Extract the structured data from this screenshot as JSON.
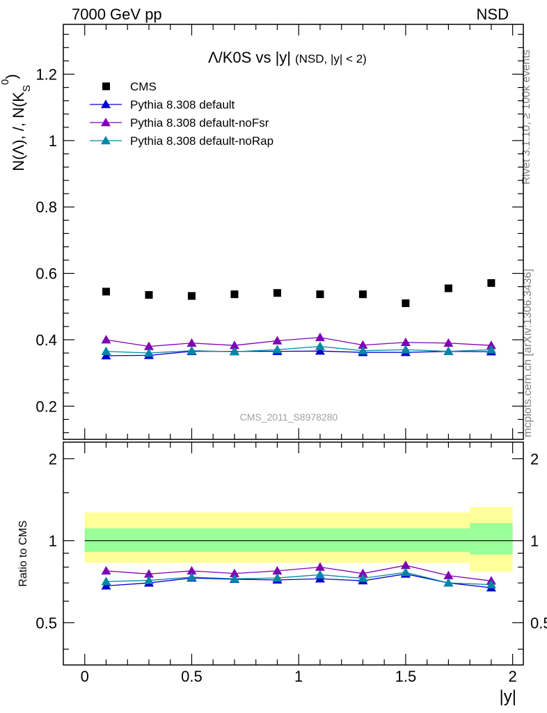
{
  "header": {
    "left": "7000 GeV pp",
    "right": "NSD"
  },
  "side_labels": {
    "rivet": "Rivet 3.1.10, ≥ 100k events",
    "mcplots": "mcplots.cern.ch [arXiv:1306.3436]"
  },
  "watermark": "CMS_2011_S8978280",
  "chart_data": [
    {
      "type": "scatter",
      "title": "Λ/K0S vs |y|",
      "subtitle": "(NSD, |y| < 2)",
      "ylabel": "N(Λ), /, N(K⁰S)",
      "xlim": [
        -0.1,
        2.05
      ],
      "ylim": [
        0.1,
        1.35
      ],
      "yticks": [
        0.2,
        0.4,
        0.6,
        0.8,
        1.0,
        1.2
      ],
      "ytick_labels": [
        "0.2",
        "0.4",
        "0.6",
        "0.8",
        "1",
        "1.2"
      ],
      "legend_position": "top-left",
      "x": [
        0.1,
        0.3,
        0.5,
        0.7,
        0.9,
        1.1,
        1.3,
        1.5,
        1.7,
        1.9
      ],
      "series": [
        {
          "name": "CMS",
          "color": "#000000",
          "marker": "square",
          "values": [
            0.545,
            0.535,
            0.532,
            0.537,
            0.541,
            0.537,
            0.537,
            0.51,
            0.555,
            0.571
          ]
        },
        {
          "name": "Pythia 8.308 default",
          "color": "#0000cc",
          "marker": "triangle",
          "values": [
            0.352,
            0.353,
            0.365,
            0.365,
            0.365,
            0.366,
            0.362,
            0.362,
            0.365,
            0.364
          ]
        },
        {
          "name": "Pythia 8.308 default-noFsr",
          "color": "#7f00b2",
          "marker": "triangle",
          "values": [
            0.4,
            0.38,
            0.39,
            0.383,
            0.397,
            0.407,
            0.384,
            0.392,
            0.39,
            0.383
          ]
        },
        {
          "name": "Pythia 8.308 default-noRap",
          "color": "#0087a6",
          "marker": "triangle",
          "values": [
            0.365,
            0.36,
            0.367,
            0.364,
            0.37,
            0.38,
            0.367,
            0.37,
            0.365,
            0.37
          ]
        }
      ]
    },
    {
      "type": "scatter",
      "ylabel": "Ratio to CMS",
      "xlabel": "|y|",
      "xlim": [
        -0.1,
        2.05
      ],
      "ylim": [
        0.35,
        2.3
      ],
      "yscale": "log",
      "yticks": [
        0.5,
        1,
        2
      ],
      "ytick_labels": [
        "0.5",
        "1",
        "2"
      ],
      "xticks": [
        0,
        0.5,
        1,
        1.5,
        2
      ],
      "xtick_labels": [
        "0",
        "0.5",
        "1",
        "1.5",
        "2"
      ],
      "x": [
        0.1,
        0.3,
        0.5,
        0.7,
        0.9,
        1.1,
        1.3,
        1.5,
        1.7,
        1.9
      ],
      "bands": [
        {
          "x_range": [
            0.0,
            1.8
          ],
          "inner": [
            0.91,
            1.11
          ],
          "outer": [
            0.83,
            1.27
          ]
        },
        {
          "x_range": [
            1.8,
            2.0
          ],
          "inner": [
            0.89,
            1.16
          ],
          "outer": [
            0.77,
            1.33
          ]
        }
      ],
      "band_colors": {
        "inner": "#99ff99",
        "outer": "#ffff99"
      },
      "series": [
        {
          "name": "Pythia 8.308 default",
          "color": "#0000cc",
          "values": [
            0.683,
            0.7,
            0.73,
            0.722,
            0.718,
            0.725,
            0.713,
            0.755,
            0.7,
            0.672
          ]
        },
        {
          "name": "Pythia 8.308 default-noFsr",
          "color": "#7f00b2",
          "values": [
            0.775,
            0.755,
            0.775,
            0.758,
            0.775,
            0.8,
            0.758,
            0.812,
            0.745,
            0.712
          ]
        },
        {
          "name": "Pythia 8.308 default-noRap",
          "color": "#0087a6",
          "values": [
            0.708,
            0.715,
            0.735,
            0.725,
            0.73,
            0.75,
            0.728,
            0.765,
            0.7,
            0.69
          ]
        }
      ]
    }
  ]
}
